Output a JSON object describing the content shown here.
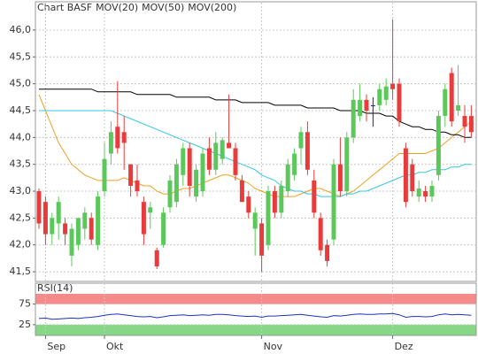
{
  "chart_data": [
    {
      "type": "candlestick",
      "name": "Chart BASF",
      "up_color": "#5cc85c",
      "down_color": "#e83c3c",
      "flat_color": "#2020a0",
      "categories": [
        null,
        "Sep",
        null,
        null,
        null,
        null,
        null,
        null,
        null,
        null,
        "Okt",
        null,
        null,
        null,
        null,
        null,
        null,
        null,
        null,
        null,
        null,
        null,
        null,
        null,
        null,
        null,
        null,
        null,
        null,
        null,
        null,
        null,
        null,
        null,
        "Nov",
        null,
        null,
        null,
        null,
        null,
        null,
        null,
        null,
        null,
        null,
        null,
        null,
        null,
        null,
        null,
        null,
        null,
        null,
        null,
        "Dez",
        null,
        null,
        null,
        null,
        null,
        null,
        null,
        null,
        null,
        null,
        null,
        null
      ],
      "open": [
        43.0,
        42.8,
        42.2,
        42.4,
        42.4,
        41.8,
        42.0,
        42.3,
        42.5,
        42.0,
        43.0,
        43.7,
        44.2,
        44.1,
        43.5,
        43.2,
        42.8,
        42.6,
        41.9,
        42.0,
        42.7,
        42.8,
        43.3,
        43.8,
        42.9,
        43.0,
        43.8,
        43.4,
        43.6,
        43.9,
        43.8,
        43.2,
        42.9,
        42.3,
        42.4,
        42.0,
        43.0,
        42.6,
        43.0,
        43.3,
        43.8,
        44.1,
        43.2,
        42.5,
        42.0,
        42.1,
        43.5,
        43.0,
        44.0,
        44.4,
        44.7,
        44.6,
        44.6,
        44.7,
        45.0,
        45.0,
        43.8,
        43.5,
        42.9,
        43.0,
        42.9,
        43.3,
        44.4,
        45.2,
        44.5,
        44.4,
        44.4
      ],
      "high": [
        43.05,
        42.9,
        42.6,
        42.9,
        42.5,
        42.4,
        42.5,
        42.7,
        42.6,
        43.0,
        43.9,
        44.3,
        45.05,
        44.4,
        43.5,
        43.5,
        42.9,
        42.8,
        41.95,
        42.7,
        43.3,
        43.6,
        43.9,
        43.9,
        43.5,
        43.8,
        44.0,
        44.1,
        44.0,
        44.8,
        43.9,
        43.3,
        43.0,
        42.7,
        42.5,
        43.1,
        43.1,
        43.2,
        43.6,
        43.8,
        44.2,
        44.3,
        43.4,
        42.6,
        42.1,
        43.6,
        44.0,
        44.1,
        44.9,
        45.0,
        44.8,
        44.75,
        45.0,
        45.1,
        46.2,
        45.1,
        43.9,
        43.6,
        43.2,
        43.1,
        43.2,
        44.5,
        45.0,
        45.3,
        45.35,
        44.6,
        44.6
      ],
      "low": [
        42.3,
        42.0,
        42.0,
        42.1,
        42.0,
        41.6,
        41.9,
        42.1,
        42.0,
        41.9,
        42.9,
        43.5,
        43.7,
        43.4,
        42.9,
        42.9,
        42.0,
        42.3,
        41.55,
        41.95,
        42.6,
        42.7,
        43.1,
        42.9,
        42.8,
        42.9,
        43.3,
        43.3,
        43.5,
        43.8,
        43.2,
        42.8,
        42.5,
        41.8,
        41.5,
        41.9,
        42.5,
        42.5,
        42.9,
        43.2,
        43.5,
        43.3,
        42.5,
        41.8,
        41.6,
        42.0,
        42.9,
        42.9,
        43.9,
        44.3,
        44.3,
        44.2,
        44.5,
        44.6,
        44.7,
        44.2,
        42.7,
        42.9,
        42.8,
        42.8,
        42.8,
        43.2,
        44.2,
        44.2,
        44.4,
        43.9,
        44.0
      ],
      "close": [
        42.4,
        42.2,
        42.5,
        42.8,
        42.2,
        42.3,
        42.5,
        42.6,
        42.1,
        42.9,
        43.6,
        44.1,
        43.8,
        43.9,
        43.1,
        43.0,
        42.2,
        42.7,
        41.6,
        42.6,
        43.2,
        43.5,
        43.8,
        43.1,
        43.4,
        43.7,
        43.4,
        43.9,
        43.95,
        43.8,
        43.3,
        42.8,
        42.6,
        42.6,
        41.8,
        43.0,
        42.6,
        43.1,
        43.5,
        43.7,
        44.1,
        43.4,
        42.6,
        41.9,
        41.7,
        43.5,
        43.0,
        44.0,
        44.7,
        44.7,
        44.5,
        44.6,
        44.9,
        44.95,
        44.9,
        44.3,
        42.8,
        43.0,
        43.05,
        42.9,
        43.1,
        44.4,
        44.9,
        44.3,
        44.6,
        44.2,
        44.1
      ],
      "series": [
        {
          "name": "MOV(20)",
          "color": "#f0a020",
          "values": [
            44.8,
            44.5,
            44.2,
            43.9,
            43.7,
            43.5,
            43.4,
            43.3,
            43.25,
            43.2,
            43.2,
            43.2,
            43.2,
            43.25,
            43.2,
            43.15,
            43.1,
            43.1,
            43.0,
            42.95,
            42.95,
            43.0,
            43.05,
            43.05,
            43.1,
            43.15,
            43.2,
            43.25,
            43.3,
            43.3,
            43.25,
            43.2,
            43.15,
            43.05,
            43.0,
            42.95,
            42.9,
            42.9,
            42.9,
            42.9,
            42.95,
            43.0,
            43.05,
            43.05,
            43.0,
            42.95,
            42.9,
            42.95,
            43.0,
            43.1,
            43.2,
            43.3,
            43.4,
            43.5,
            43.6,
            43.7,
            43.7,
            43.7,
            43.7,
            43.7,
            43.75,
            43.8,
            43.9,
            44.0,
            44.1,
            44.2,
            44.3
          ]
        },
        {
          "name": "MOV(50)",
          "color": "#30c8e0",
          "values": [
            44.5,
            44.5,
            44.5,
            44.5,
            44.5,
            44.5,
            44.5,
            44.5,
            44.5,
            44.5,
            44.5,
            44.5,
            44.45,
            44.4,
            44.35,
            44.3,
            44.25,
            44.2,
            44.15,
            44.1,
            44.05,
            44.0,
            43.95,
            43.9,
            43.85,
            43.8,
            43.75,
            43.7,
            43.65,
            43.6,
            43.55,
            43.5,
            43.45,
            43.4,
            43.3,
            43.25,
            43.2,
            43.1,
            43.05,
            43.0,
            43.0,
            42.95,
            42.95,
            42.9,
            42.9,
            42.9,
            42.9,
            42.95,
            42.95,
            43.0,
            43.0,
            43.05,
            43.1,
            43.15,
            43.2,
            43.25,
            43.3,
            43.3,
            43.35,
            43.35,
            43.4,
            43.4,
            43.4,
            43.45,
            43.45,
            43.5,
            43.5
          ]
        },
        {
          "name": "MOV(200)",
          "color": "#000000",
          "values": [
            44.9,
            44.9,
            44.9,
            44.9,
            44.9,
            44.9,
            44.9,
            44.9,
            44.9,
            44.85,
            44.85,
            44.85,
            44.85,
            44.85,
            44.85,
            44.8,
            44.8,
            44.8,
            44.8,
            44.8,
            44.8,
            44.75,
            44.75,
            44.75,
            44.75,
            44.75,
            44.75,
            44.7,
            44.7,
            44.7,
            44.7,
            44.65,
            44.65,
            44.65,
            44.65,
            44.65,
            44.6,
            44.6,
            44.6,
            44.6,
            44.6,
            44.55,
            44.55,
            44.55,
            44.55,
            44.55,
            44.5,
            44.5,
            44.5,
            44.5,
            44.45,
            44.45,
            44.45,
            44.4,
            44.4,
            44.3,
            44.25,
            44.2,
            44.2,
            44.15,
            44.15,
            44.1,
            44.1,
            44.05,
            44.05,
            44.0,
            44.0
          ]
        }
      ],
      "ylim": [
        41.32,
        46.51
      ],
      "yticks": [
        {
          "value": 41.5,
          "label": "41,5"
        },
        {
          "value": 42.0,
          "label": "42,0"
        },
        {
          "value": 42.5,
          "label": "42,5"
        },
        {
          "value": 43.0,
          "label": "43,0"
        },
        {
          "value": 43.5,
          "label": "43,5"
        },
        {
          "value": 44.0,
          "label": "44,0"
        },
        {
          "value": 44.5,
          "label": "44,5"
        },
        {
          "value": 45.0,
          "label": "45,0"
        },
        {
          "value": 45.5,
          "label": "45,5"
        },
        {
          "value": 46.0,
          "label": "46,0"
        }
      ],
      "grid": true
    },
    {
      "type": "line",
      "title": "RSI(14)",
      "series": [
        {
          "color": "#2030c0",
          "values": [
            40,
            41,
            38,
            39,
            40,
            41,
            40,
            42,
            43,
            45,
            48,
            50,
            51,
            49,
            47,
            45,
            44,
            45,
            42,
            44,
            47,
            48,
            49,
            47,
            48,
            49,
            48,
            50,
            50,
            49,
            47,
            46,
            45,
            46,
            43,
            46,
            46,
            47,
            48,
            49,
            50,
            48,
            46,
            44,
            43,
            47,
            46,
            48,
            50,
            51,
            50,
            50,
            51,
            51,
            52,
            49,
            43,
            45,
            45,
            44,
            45,
            49,
            51,
            49,
            50,
            49,
            48
          ]
        }
      ],
      "bands": [
        {
          "from": 75,
          "to": 100,
          "color": "#f48a8a"
        },
        {
          "from": 0,
          "to": 25,
          "color": "#86d886"
        }
      ],
      "ylim": [
        0,
        100
      ],
      "yticks": [
        25,
        75
      ],
      "grid": true
    }
  ]
}
